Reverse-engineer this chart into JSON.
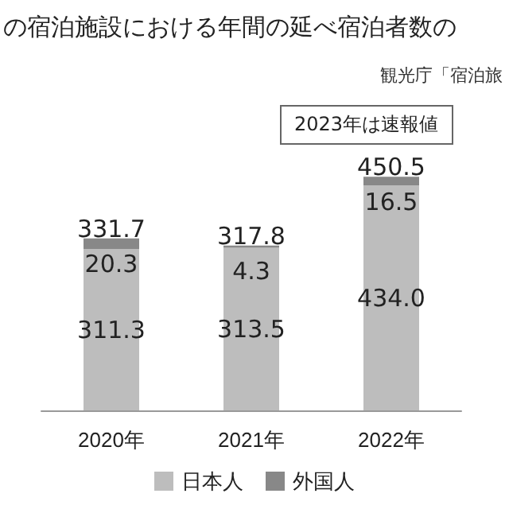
{
  "chart_data": {
    "type": "bar",
    "title": "の宿泊施設における年間の延べ宿泊者数の",
    "annotations": [
      "観光庁「宿泊旅",
      "2023年は速報値"
    ],
    "categories": [
      "2020年",
      "2021年",
      "2022年"
    ],
    "stacked": true,
    "series": [
      {
        "name": "日本人",
        "color": "#bdbdbd",
        "values": [
          311.3,
          313.5,
          434.0
        ],
        "value_labels": [
          "311.3",
          "313.5",
          "434.0"
        ]
      },
      {
        "name": "外国人",
        "color": "#888888",
        "values": [
          20.3,
          4.3,
          16.5
        ],
        "value_labels": [
          "20.3",
          "4.3",
          "16.5"
        ]
      }
    ],
    "totals": [
      "331.7",
      "317.8",
      "450.5"
    ],
    "legend": "bottom"
  }
}
